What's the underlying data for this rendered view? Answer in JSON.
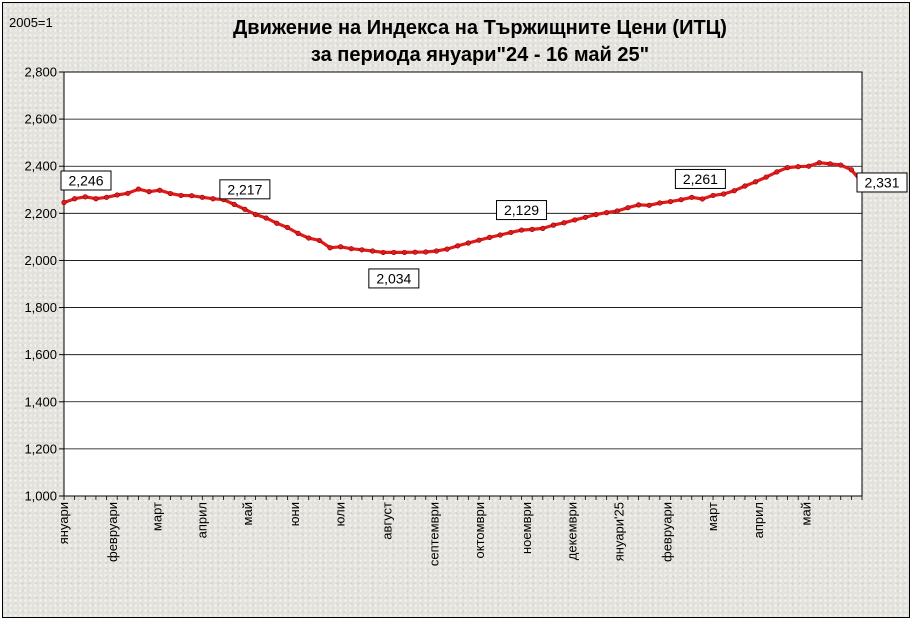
{
  "chart_data": {
    "type": "line",
    "title": "Движение на Индекса на Тържищните Цени (ИТЦ)",
    "subtitle": "за периода януари\"24 - 16 май 25\"",
    "unit_label": "2005=1",
    "ylim": [
      1.0,
      2.8
    ],
    "yticks": [
      1.0,
      1.2,
      1.4,
      1.6,
      1.8,
      2.0,
      2.2,
      2.4,
      2.6,
      2.8
    ],
    "ytick_labels": [
      "1,000",
      "1,200",
      "1,400",
      "1,600",
      "1,800",
      "2,000",
      "2,200",
      "2,400",
      "2,600",
      "2,800"
    ],
    "grid": true,
    "series_color": "#e11b1b",
    "plot_background": "#ffffff",
    "x_month_labels": [
      {
        "label": "януари",
        "week": 0
      },
      {
        "label": "февруари",
        "week": 4.6
      },
      {
        "label": "март",
        "week": 8.8
      },
      {
        "label": "април",
        "week": 13
      },
      {
        "label": "май",
        "week": 17.3
      },
      {
        "label": "юни",
        "week": 21.7
      },
      {
        "label": "юли",
        "week": 26
      },
      {
        "label": "август",
        "week": 30.4
      },
      {
        "label": "септември",
        "week": 34.8
      },
      {
        "label": "октомври",
        "week": 39.1
      },
      {
        "label": "ноември",
        "week": 43.5
      },
      {
        "label": "декември",
        "week": 47.8
      },
      {
        "label": "януари'25",
        "week": 52.2
      },
      {
        "label": "февруари",
        "week": 56.7
      },
      {
        "label": "март",
        "week": 61
      },
      {
        "label": "април",
        "week": 65.3
      },
      {
        "label": "май",
        "week": 69.8
      }
    ],
    "series": [
      {
        "values": [
          2.246,
          2.262,
          2.27,
          2.262,
          2.268,
          2.278,
          2.285,
          2.303,
          2.292,
          2.298,
          2.284,
          2.276,
          2.275,
          2.268,
          2.262,
          2.258,
          2.238,
          2.217,
          2.195,
          2.18,
          2.158,
          2.14,
          2.115,
          2.095,
          2.085,
          2.054,
          2.058,
          2.05,
          2.045,
          2.04,
          2.034,
          2.034,
          2.034,
          2.035,
          2.036,
          2.04,
          2.048,
          2.062,
          2.074,
          2.086,
          2.098,
          2.108,
          2.119,
          2.129,
          2.132,
          2.136,
          2.15,
          2.16,
          2.172,
          2.183,
          2.195,
          2.203,
          2.21,
          2.224,
          2.236,
          2.234,
          2.244,
          2.25,
          2.258,
          2.268,
          2.261,
          2.276,
          2.282,
          2.296,
          2.316,
          2.334,
          2.354,
          2.376,
          2.394,
          2.398,
          2.4,
          2.415,
          2.41,
          2.405,
          2.385,
          2.331
        ]
      }
    ],
    "annotations": [
      {
        "index": 0,
        "text": "2,246"
      },
      {
        "index": 17,
        "text": "2,217"
      },
      {
        "index": 31,
        "text": "2,034"
      },
      {
        "index": 43,
        "text": "2,129"
      },
      {
        "index": 60,
        "text": "2,261"
      },
      {
        "index": 75,
        "text": "2,331"
      }
    ]
  }
}
